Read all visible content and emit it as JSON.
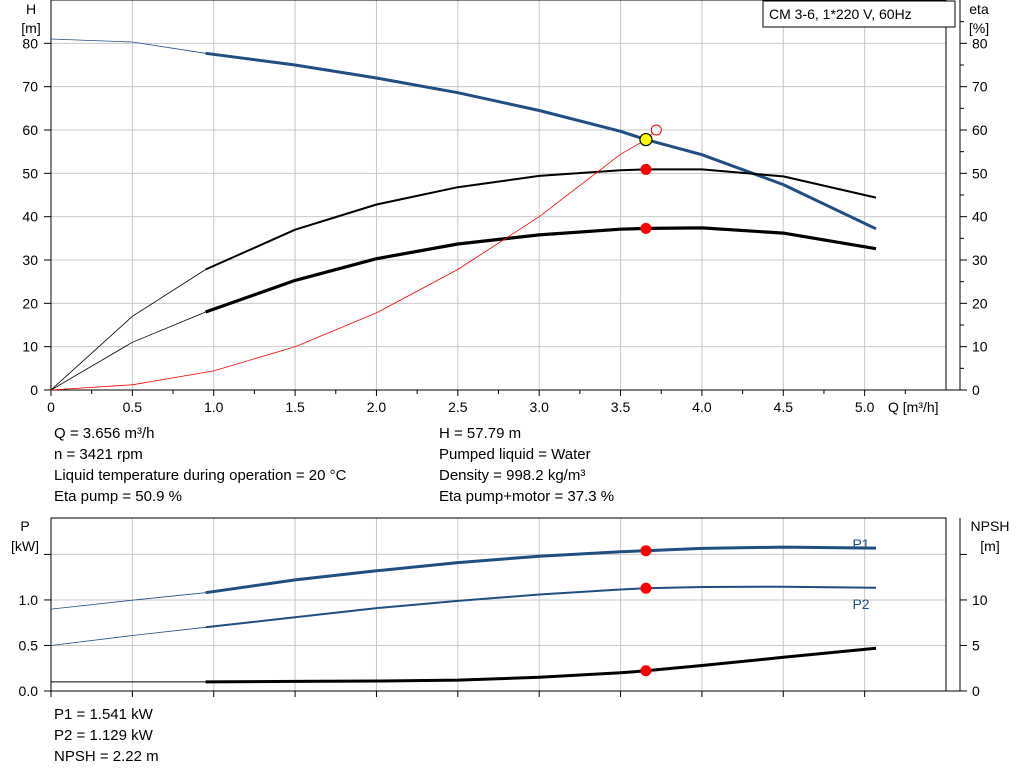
{
  "chart_data": [
    {
      "type": "line",
      "title": "CM 3-6, 1*220 V, 60Hz",
      "x_axis": {
        "label": "Q [m³/h]",
        "range": [
          0,
          5.5
        ],
        "ticks": [
          "0",
          "0.5",
          "1.0",
          "1.5",
          "2.0",
          "2.5",
          "3.0",
          "3.5",
          "4.0",
          "4.5",
          "5.0"
        ]
      },
      "y_axis_left": {
        "label": "H",
        "unit": "[m]",
        "range": [
          0,
          90
        ],
        "ticks": [
          "0",
          "10",
          "20",
          "30",
          "40",
          "50",
          "60",
          "70",
          "80"
        ]
      },
      "y_axis_right": {
        "label": "eta",
        "unit": "[%]",
        "range": [
          0,
          90
        ],
        "ticks": [
          "0",
          "10",
          "20",
          "30",
          "40",
          "50",
          "60",
          "70",
          "80"
        ]
      },
      "grid": true,
      "series": [
        {
          "color": "#1f4e82",
          "axis": "left",
          "extrapolated": [
            [
              0,
              81
            ],
            [
              0.5,
              80.3
            ],
            [
              0.95,
              77.7
            ]
          ],
          "x": [
            0.95,
            1.5,
            2.0,
            2.5,
            3.0,
            3.5,
            3.656,
            4.0,
            4.5,
            5.07
          ],
          "values": [
            77.7,
            75.0,
            72.0,
            68.6,
            64.5,
            59.7,
            57.79,
            54.3,
            47.4,
            37.2
          ]
        },
        {
          "color": "#000000",
          "axis": "right",
          "extrapolated": [
            [
              0,
              0
            ],
            [
              0.5,
              17.0
            ],
            [
              0.95,
              27.8
            ]
          ],
          "x": [
            0.95,
            1.5,
            2.0,
            2.5,
            3.0,
            3.5,
            3.656,
            4.0,
            4.5,
            5.07
          ],
          "values": [
            27.8,
            37.0,
            42.8,
            46.8,
            49.4,
            50.7,
            50.9,
            50.9,
            49.3,
            44.4
          ]
        },
        {
          "color": "#000000",
          "axis": "right",
          "extrapolated": [
            [
              0,
              0
            ],
            [
              0.5,
              11.0
            ],
            [
              0.95,
              18.0
            ]
          ],
          "x": [
            0.95,
            1.5,
            2.0,
            2.5,
            3.0,
            3.5,
            3.656,
            4.0,
            4.5,
            5.07
          ],
          "values": [
            18.0,
            25.3,
            30.3,
            33.7,
            35.8,
            37.1,
            37.3,
            37.4,
            36.2,
            32.6
          ]
        },
        {
          "color": "#ff0000",
          "axis": "left",
          "thin": true,
          "x": [
            0,
            0.5,
            1.0,
            1.5,
            2.0,
            2.5,
            3.0,
            3.5,
            3.656,
            3.72
          ],
          "values": [
            0,
            1.2,
            4.4,
            10.0,
            17.8,
            27.8,
            40.0,
            54.4,
            57.79,
            60.0
          ]
        }
      ],
      "operating_point": {
        "x": 3.656,
        "H": 57.79,
        "eta_pump": 50.9,
        "eta_total": 37.3
      }
    },
    {
      "type": "line",
      "x_axis": {
        "range": [
          0,
          5.5
        ]
      },
      "y_axis_left": {
        "label": "P",
        "unit": "[kW]",
        "range": [
          0,
          1.9
        ],
        "ticks": [
          "0.0",
          "0.5",
          "1.0"
        ]
      },
      "y_axis_right": {
        "label": "NPSH",
        "unit": "[m]",
        "range": [
          0,
          19
        ],
        "ticks": [
          "0",
          "5",
          "10"
        ]
      },
      "grid": true,
      "series": [
        {
          "name": "P1",
          "color": "#1f4e82",
          "axis": "left",
          "extrapolated": [
            [
              0,
              0.9
            ],
            [
              0.5,
              0.997
            ],
            [
              0.95,
              1.08
            ]
          ],
          "x": [
            0.95,
            1.5,
            2.0,
            2.5,
            3.0,
            3.5,
            3.656,
            4.0,
            4.5,
            5.07
          ],
          "values": [
            1.08,
            1.22,
            1.32,
            1.41,
            1.48,
            1.53,
            1.541,
            1.566,
            1.58,
            1.569
          ]
        },
        {
          "name": "P2",
          "color": "#1f4e82",
          "axis": "left",
          "extrapolated": [
            [
              0,
              0.5
            ],
            [
              0.5,
              0.61
            ],
            [
              0.95,
              0.7
            ]
          ],
          "x": [
            0.95,
            1.5,
            2.0,
            2.5,
            3.0,
            3.5,
            3.656,
            4.0,
            4.5,
            5.07
          ],
          "values": [
            0.7,
            0.81,
            0.91,
            0.99,
            1.06,
            1.115,
            1.129,
            1.142,
            1.145,
            1.135
          ]
        },
        {
          "color": "#000000",
          "axis": "right",
          "extrapolated": [
            [
              0,
              1.0
            ],
            [
              0.95,
              1.0
            ]
          ],
          "x": [
            0.95,
            1.5,
            2.0,
            2.5,
            3.0,
            3.5,
            3.656,
            4.0,
            4.5,
            5.07
          ],
          "values": [
            1.0,
            1.05,
            1.1,
            1.2,
            1.5,
            2.0,
            2.22,
            2.8,
            3.7,
            4.7
          ]
        }
      ],
      "operating_point": {
        "x": 3.656,
        "P1": 1.541,
        "P2": 1.129,
        "NPSH": 2.22
      }
    }
  ],
  "info_top_left": [
    "Q = 3.656 m³/h",
    "n = 3421 rpm",
    "Liquid temperature during operation = 20 °C",
    "Eta pump = 50.9 %"
  ],
  "info_top_right": [
    "H = 57.79 m",
    "Pumped liquid = Water",
    "Density = 998.2 kg/m³",
    "Eta pump+motor = 37.3 %"
  ],
  "info_bottom": [
    "P1 = 1.541 kW",
    "P2 = 1.129 kW",
    "NPSH = 2.22 m"
  ],
  "colors": {
    "blue": "#1f4e82",
    "red": "#ff0000",
    "yellow": "#ffff00",
    "grid": "#c8c8c8"
  }
}
